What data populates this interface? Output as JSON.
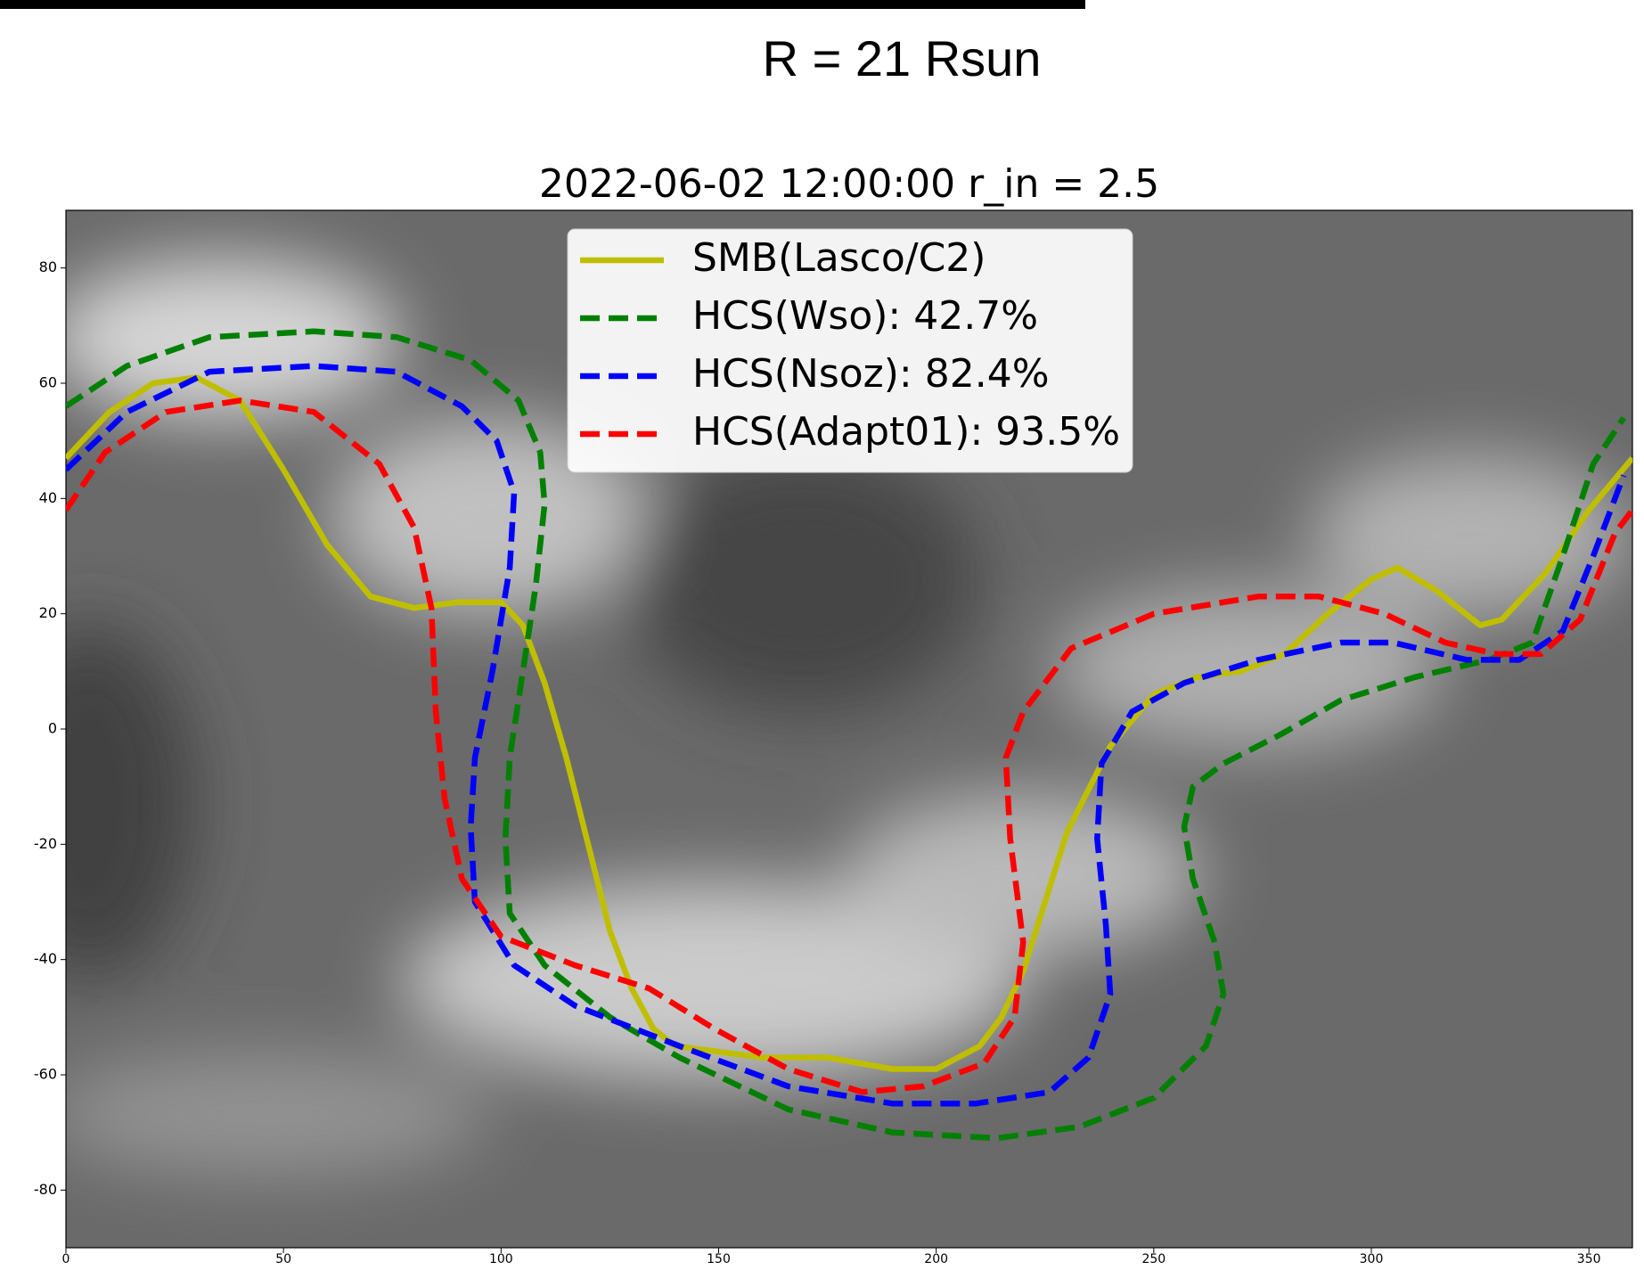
{
  "chart_data": {
    "type": "line",
    "title": "R = 21 Rsun",
    "subtitle": "2022-06-02 12:00:00 r_in = 2.5",
    "xlim": [
      0,
      360
    ],
    "ylim": [
      -90,
      90
    ],
    "xticks": [
      0,
      50,
      100,
      150,
      200,
      250,
      300,
      350
    ],
    "yticks": [
      -80,
      -60,
      -40,
      -20,
      0,
      20,
      40,
      60,
      80
    ],
    "legend": "upper center",
    "series": [
      {
        "name": "SMB(Lasco/C2)",
        "color": "#bfbf00",
        "style": "solid",
        "x": [
          0,
          10,
          20,
          30,
          40,
          50,
          60,
          70,
          80,
          90,
          100,
          105,
          110,
          115,
          120,
          125,
          130,
          135,
          140,
          150,
          160,
          175,
          190,
          200,
          210,
          215,
          220,
          225,
          230,
          240,
          250,
          260,
          270,
          280,
          290,
          300,
          306,
          315,
          325,
          330,
          340,
          350,
          360
        ],
        "values": [
          47,
          55,
          60,
          61,
          57,
          45,
          32,
          23,
          21,
          22,
          22,
          18,
          8,
          -5,
          -20,
          -35,
          -45,
          -52,
          -55,
          -56,
          -57,
          -57,
          -59,
          -59,
          -55,
          -50,
          -42,
          -30,
          -18,
          -3,
          6,
          9,
          10,
          13,
          20,
          26,
          28,
          24,
          18,
          19,
          27,
          38,
          47
        ]
      },
      {
        "name": "HCS(Wso): 42.7%",
        "color": "#008000",
        "style": "dashed",
        "x": [
          0,
          14,
          33,
          57,
          76,
          93,
          104,
          109,
          110,
          108,
          105,
          102,
          101,
          102,
          110,
          125,
          141,
          166,
          190,
          214,
          233,
          250,
          262,
          266,
          264,
          259,
          257,
          259,
          266,
          279,
          293,
          310,
          327,
          337,
          344,
          351,
          358
        ],
        "values": [
          56,
          63,
          68,
          69,
          68,
          64,
          57,
          48,
          39,
          25,
          10,
          -5,
          -19,
          -32,
          -41,
          -50,
          -57,
          -66,
          -70,
          -71,
          -69,
          -64,
          -55,
          -46,
          -37,
          -26,
          -17,
          -10,
          -6,
          -1,
          5,
          9,
          12,
          15,
          30,
          46,
          54
        ]
      },
      {
        "name": "HCS(Nsoz): 82.4%",
        "color": "#0000ff",
        "style": "dashed",
        "x": [
          0,
          14,
          33,
          57,
          76,
          91,
          99,
          103,
          102,
          98,
          94,
          93,
          94,
          103,
          117,
          141,
          166,
          190,
          209,
          226,
          235,
          240,
          239,
          237,
          238,
          245,
          257,
          274,
          293,
          305,
          322,
          334,
          344,
          351,
          358
        ],
        "values": [
          45,
          55,
          62,
          63,
          62,
          56,
          50,
          41,
          28,
          10,
          -5,
          -17,
          -30,
          -41,
          -48,
          -55,
          -62,
          -65,
          -65,
          -63,
          -57,
          -46,
          -34,
          -19,
          -6,
          3,
          8,
          12,
          15,
          15,
          12,
          12,
          17,
          30,
          44
        ]
      },
      {
        "name": "HCS(Adapt01): 93.5%",
        "color": "#ff0000",
        "style": "dashed",
        "x": [
          0,
          9,
          23,
          40,
          57,
          72,
          80,
          84,
          85,
          87,
          91,
          100,
          117,
          134,
          149,
          166,
          183,
          197,
          211,
          218,
          220,
          217,
          216,
          220,
          231,
          250,
          274,
          288,
          303,
          317,
          329,
          339,
          348,
          356,
          360
        ],
        "values": [
          38,
          48,
          55,
          57,
          55,
          46,
          35,
          21,
          3,
          -12,
          -26,
          -36,
          -41,
          -45,
          -52,
          -59,
          -63,
          -62,
          -58,
          -50,
          -37,
          -19,
          -5,
          3,
          14,
          20,
          23,
          23,
          20,
          15,
          13,
          13,
          19,
          34,
          38
        ]
      }
    ]
  }
}
